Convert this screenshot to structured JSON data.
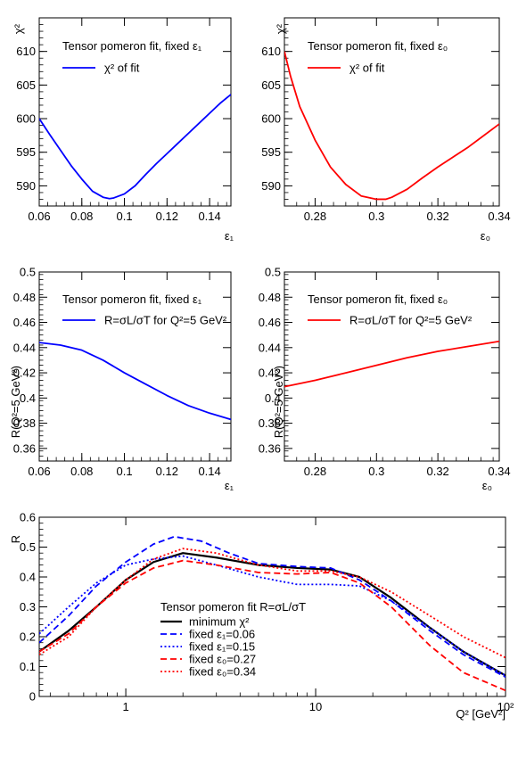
{
  "chart_data": [
    {
      "type": "line",
      "title": "Tensor pomeron fit, fixed ε₁",
      "xlabel": "ε₁",
      "ylabel": "χ²",
      "xlim": [
        0.06,
        0.15
      ],
      "ylim": [
        587,
        615
      ],
      "xticks": [
        "0.06",
        "0.08",
        "0.1",
        "0.12",
        "0.14"
      ],
      "yticks": [
        "590",
        "595",
        "600",
        "605",
        "610"
      ],
      "series": [
        {
          "name": "χ² of fit",
          "color": "#0000ff",
          "dash": "solid",
          "x": [
            0.06,
            0.065,
            0.07,
            0.075,
            0.08,
            0.085,
            0.09,
            0.093,
            0.095,
            0.1,
            0.105,
            0.11,
            0.115,
            0.12,
            0.125,
            0.13,
            0.135,
            0.14,
            0.145,
            0.15
          ],
          "y": [
            600.0,
            597.6,
            595.3,
            593.0,
            591.0,
            589.2,
            588.3,
            588.1,
            588.2,
            588.8,
            590.0,
            591.7,
            593.3,
            594.8,
            596.3,
            597.8,
            599.3,
            600.8,
            602.3,
            603.6
          ]
        }
      ]
    },
    {
      "type": "line",
      "title": "Tensor pomeron fit, fixed ε₀",
      "xlabel": "ε₀",
      "ylabel": "χ²",
      "xlim": [
        0.27,
        0.34
      ],
      "ylim": [
        587,
        615
      ],
      "xticks": [
        "0.28",
        "0.3",
        "0.32",
        "0.34"
      ],
      "yticks": [
        "590",
        "595",
        "600",
        "605",
        "610"
      ],
      "series": [
        {
          "name": "χ² of fit",
          "color": "#ff0000",
          "dash": "solid",
          "x": [
            0.27,
            0.272,
            0.275,
            0.28,
            0.285,
            0.29,
            0.295,
            0.3,
            0.303,
            0.305,
            0.31,
            0.315,
            0.32,
            0.325,
            0.33,
            0.335,
            0.34
          ],
          "y": [
            610.0,
            606.3,
            601.8,
            596.8,
            592.8,
            590.2,
            588.5,
            588.0,
            588.0,
            588.3,
            589.5,
            591.2,
            592.8,
            594.3,
            595.8,
            597.5,
            599.2
          ]
        }
      ]
    },
    {
      "type": "line",
      "title": "Tensor pomeron fit, fixed ε₁",
      "xlabel": "ε₁",
      "ylabel": "R(Q²=5 GeV²)",
      "xlim": [
        0.06,
        0.15
      ],
      "ylim": [
        0.35,
        0.5
      ],
      "xticks": [
        "0.06",
        "0.08",
        "0.1",
        "0.12",
        "0.14"
      ],
      "yticks": [
        "0.36",
        "0.38",
        "0.4",
        "0.42",
        "0.44",
        "0.46",
        "0.48",
        "0.5"
      ],
      "series": [
        {
          "name": "R=σL/σT for Q²=5 GeV²",
          "color": "#0000ff",
          "dash": "solid",
          "x": [
            0.06,
            0.07,
            0.08,
            0.09,
            0.1,
            0.11,
            0.12,
            0.13,
            0.14,
            0.15
          ],
          "y": [
            0.444,
            0.442,
            0.438,
            0.43,
            0.42,
            0.411,
            0.402,
            0.394,
            0.388,
            0.383
          ]
        }
      ]
    },
    {
      "type": "line",
      "title": "Tensor pomeron fit, fixed ε₀",
      "xlabel": "ε₀",
      "ylabel": "R(Q²=5 GeV²)",
      "xlim": [
        0.27,
        0.34
      ],
      "ylim": [
        0.35,
        0.5
      ],
      "xticks": [
        "0.28",
        "0.3",
        "0.32",
        "0.34"
      ],
      "yticks": [
        "0.36",
        "0.38",
        "0.4",
        "0.42",
        "0.44",
        "0.46",
        "0.48",
        "0.5"
      ],
      "series": [
        {
          "name": "R=σL/σT for Q²=5 GeV²",
          "color": "#ff0000",
          "dash": "solid",
          "x": [
            0.27,
            0.28,
            0.29,
            0.3,
            0.31,
            0.32,
            0.33,
            0.34
          ],
          "y": [
            0.409,
            0.414,
            0.42,
            0.426,
            0.432,
            0.437,
            0.441,
            0.445
          ]
        }
      ]
    },
    {
      "type": "line",
      "title": "Tensor pomeron fit R=σL/σT",
      "xlabel": "Q² [GeV²]",
      "ylabel": "R",
      "xscale": "log",
      "xlim": [
        0.35,
        100
      ],
      "ylim": [
        0,
        0.6
      ],
      "xticks": [
        "1",
        "10",
        "10²"
      ],
      "yticks": [
        "0",
        "0.1",
        "0.2",
        "0.3",
        "0.4",
        "0.5",
        "0.6"
      ],
      "series": [
        {
          "name": "minimum χ²",
          "color": "#000000",
          "dash": "solid",
          "x": [
            0.35,
            0.5,
            0.7,
            1.0,
            1.4,
            2.0,
            3.0,
            5.0,
            8.0,
            12.0,
            17.0,
            25.0,
            40.0,
            60.0,
            100.0
          ],
          "y": [
            0.15,
            0.22,
            0.3,
            0.39,
            0.45,
            0.48,
            0.465,
            0.44,
            0.43,
            0.425,
            0.4,
            0.33,
            0.23,
            0.15,
            0.07
          ]
        },
        {
          "name": "fixed ε₁=0.06",
          "color": "#0000ff",
          "dash": "dashed",
          "x": [
            0.35,
            0.5,
            0.7,
            1.0,
            1.4,
            1.8,
            2.5,
            3.5,
            5.0,
            8.0,
            12.0,
            17.0,
            25.0,
            40.0,
            60.0,
            100.0
          ],
          "y": [
            0.18,
            0.27,
            0.37,
            0.45,
            0.51,
            0.535,
            0.52,
            0.48,
            0.445,
            0.435,
            0.43,
            0.39,
            0.32,
            0.22,
            0.14,
            0.065
          ]
        },
        {
          "name": "fixed ε₁=0.15",
          "color": "#0000ff",
          "dash": "dotted",
          "x": [
            0.35,
            0.5,
            0.7,
            1.0,
            1.4,
            2.0,
            3.0,
            5.0,
            8.0,
            12.0,
            17.0,
            25.0,
            40.0,
            60.0,
            100.0
          ],
          "y": [
            0.21,
            0.3,
            0.38,
            0.44,
            0.46,
            0.47,
            0.44,
            0.4,
            0.375,
            0.375,
            0.37,
            0.32,
            0.23,
            0.15,
            0.07
          ]
        },
        {
          "name": "fixed ε₀=0.27",
          "color": "#ff0000",
          "dash": "dashed",
          "x": [
            0.35,
            0.5,
            0.7,
            1.0,
            1.4,
            2.0,
            3.0,
            5.0,
            8.0,
            12.0,
            17.0,
            25.0,
            40.0,
            60.0,
            100.0
          ],
          "y": [
            0.15,
            0.21,
            0.3,
            0.38,
            0.43,
            0.455,
            0.44,
            0.415,
            0.41,
            0.415,
            0.38,
            0.3,
            0.17,
            0.08,
            0.02
          ]
        },
        {
          "name": "fixed ε₀=0.34",
          "color": "#ff0000",
          "dash": "dotted",
          "x": [
            0.35,
            0.5,
            0.7,
            1.0,
            1.4,
            2.0,
            3.0,
            5.0,
            8.0,
            12.0,
            17.0,
            25.0,
            40.0,
            60.0,
            100.0
          ],
          "y": [
            0.14,
            0.2,
            0.3,
            0.39,
            0.46,
            0.495,
            0.48,
            0.44,
            0.42,
            0.42,
            0.4,
            0.35,
            0.27,
            0.2,
            0.13
          ]
        }
      ]
    }
  ]
}
